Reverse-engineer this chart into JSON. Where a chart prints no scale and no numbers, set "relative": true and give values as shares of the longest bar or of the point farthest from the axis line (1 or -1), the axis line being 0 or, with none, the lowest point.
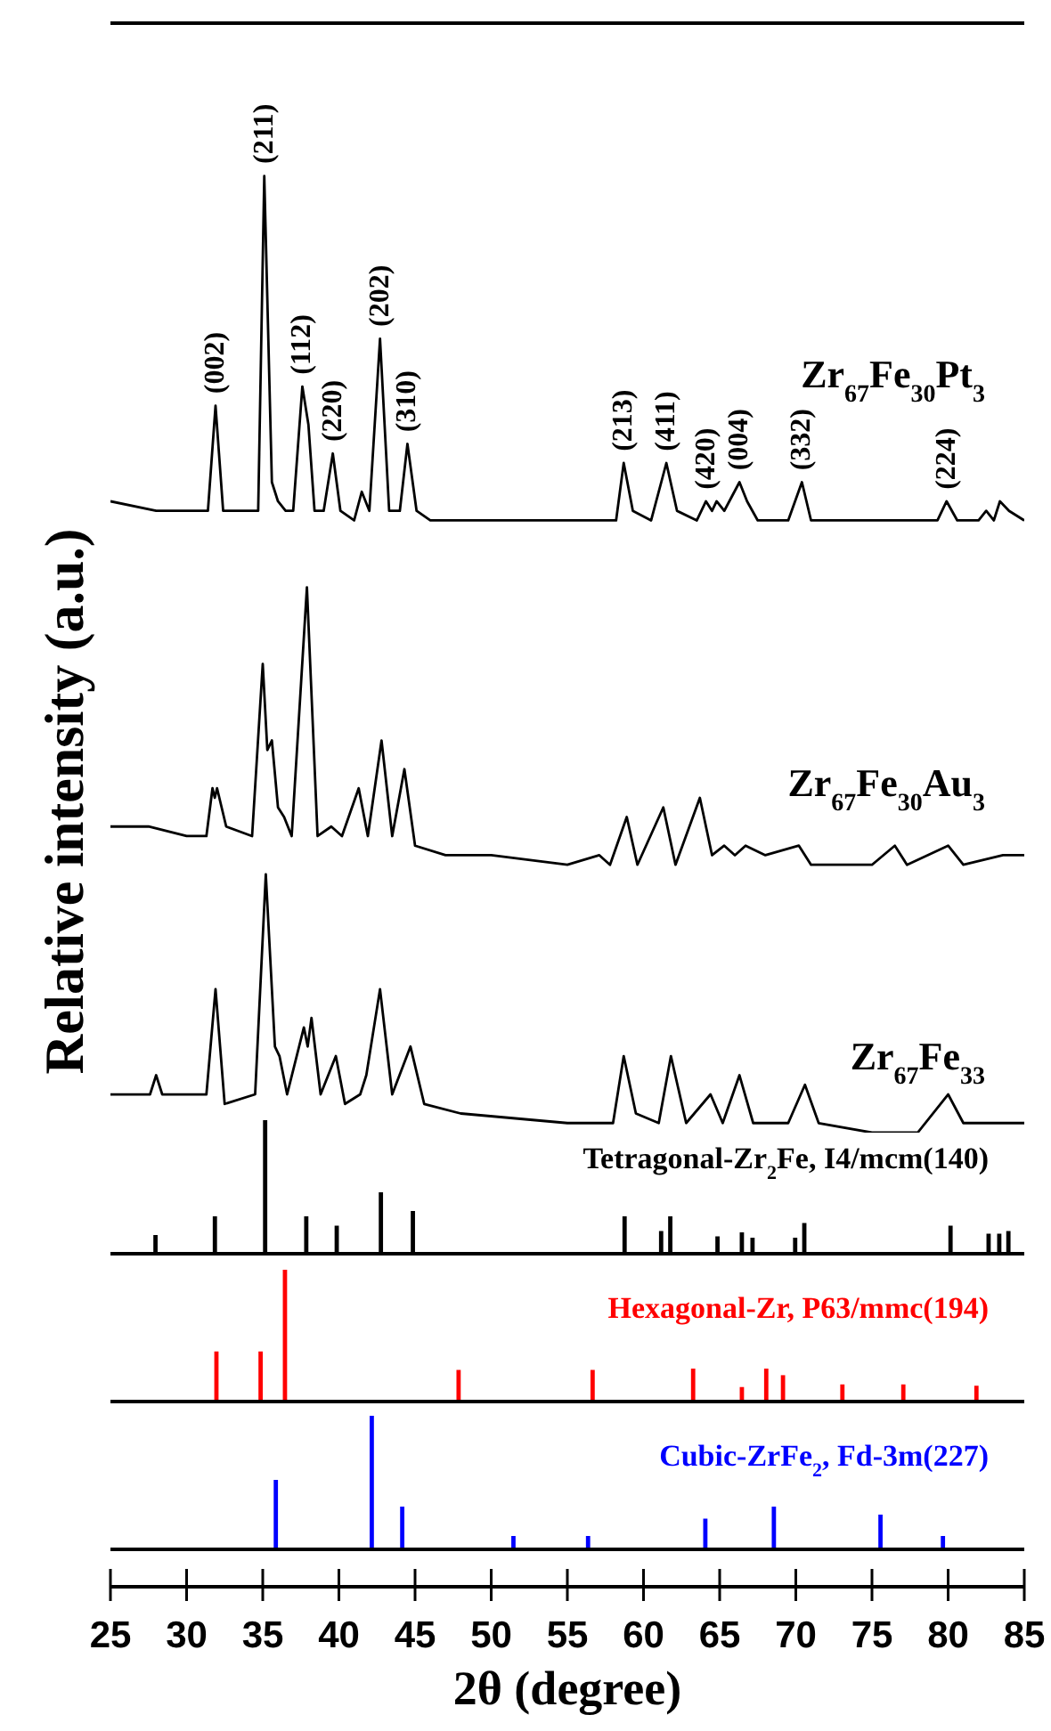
{
  "chart_data": [
    {
      "type": "line",
      "ylabel": "Relative intensity (a.u.)",
      "xlim": [
        25,
        85
      ],
      "tick_labels": false,
      "relative": true,
      "series": [
        {
          "name": "Zr$_{67}$Fe$_{30}$Pt$_{3}$",
          "color": "#000000",
          "x": [
            25,
            28,
            30,
            31.4,
            31.9,
            32.4,
            34.2,
            34.7,
            35.1,
            35.6,
            36.0,
            36.5,
            37.0,
            37.6,
            38.0,
            38.4,
            39.0,
            39.6,
            40.1,
            41.0,
            41.5,
            42.0,
            42.7,
            43.3,
            44.0,
            44.5,
            45.1,
            46,
            50,
            55,
            57.5,
            58.2,
            58.7,
            59.3,
            60.5,
            61.5,
            62.2,
            63.5,
            64.1,
            64.5,
            64.8,
            65.3,
            66.3,
            66.8,
            67.5,
            69.5,
            70.4,
            71.0,
            73,
            75,
            77.5,
            79.3,
            79.9,
            80.6,
            82,
            82.5,
            83.0,
            83.4,
            84,
            85
          ],
          "values": [
            0.66,
            0.65,
            0.65,
            0.65,
            0.76,
            0.65,
            0.65,
            0.65,
            1.0,
            0.68,
            0.66,
            0.65,
            0.65,
            0.78,
            0.74,
            0.65,
            0.65,
            0.71,
            0.65,
            0.64,
            0.67,
            0.65,
            0.83,
            0.65,
            0.65,
            0.72,
            0.65,
            0.64,
            0.64,
            0.64,
            0.64,
            0.64,
            0.7,
            0.65,
            0.64,
            0.7,
            0.65,
            0.64,
            0.66,
            0.65,
            0.66,
            0.65,
            0.68,
            0.66,
            0.64,
            0.64,
            0.68,
            0.64,
            0.64,
            0.64,
            0.64,
            0.64,
            0.66,
            0.64,
            0.64,
            0.65,
            0.64,
            0.66,
            0.65,
            0.64
          ]
        },
        {
          "name": "Zr$_{67}$Fe$_{30}$Au$_{3}$",
          "color": "#000000",
          "x": [
            25,
            27.5,
            30,
            31.3,
            31.7,
            31.85,
            32.0,
            32.6,
            34.3,
            35.0,
            35.3,
            35.6,
            36.0,
            36.4,
            36.9,
            37.9,
            38.6,
            39.5,
            40.2,
            41.3,
            41.9,
            42.8,
            43.5,
            44.3,
            45.0,
            47,
            50,
            55,
            57.1,
            57.8,
            58.9,
            59.6,
            61.3,
            62.1,
            63.7,
            64.5,
            65.3,
            66.0,
            66.7,
            68,
            70.2,
            71.0,
            75,
            76.5,
            77.3,
            80.0,
            81,
            83.6,
            85
          ],
          "values": [
            0.32,
            0.32,
            0.31,
            0.31,
            0.36,
            0.35,
            0.36,
            0.32,
            0.31,
            0.49,
            0.4,
            0.41,
            0.34,
            0.33,
            0.31,
            0.57,
            0.31,
            0.32,
            0.31,
            0.36,
            0.31,
            0.41,
            0.31,
            0.38,
            0.3,
            0.29,
            0.29,
            0.28,
            0.29,
            0.28,
            0.33,
            0.28,
            0.34,
            0.28,
            0.35,
            0.29,
            0.3,
            0.29,
            0.3,
            0.29,
            0.3,
            0.28,
            0.28,
            0.3,
            0.28,
            0.3,
            0.28,
            0.29,
            0.29
          ]
        },
        {
          "name": "Zr$_{67}$Fe$_{33}$",
          "color": "#000000",
          "x": [
            25,
            27.6,
            28.0,
            28.4,
            31.3,
            31.9,
            32.5,
            34.5,
            35.2,
            35.8,
            36.1,
            36.6,
            37.7,
            37.95,
            38.2,
            38.8,
            39.8,
            40.4,
            41.4,
            41.8,
            42.7,
            43.5,
            44.7,
            45.6,
            48,
            55,
            58.0,
            58.7,
            59.5,
            61,
            61.8,
            62.8,
            64.4,
            65.2,
            66.3,
            67.2,
            69.5,
            70.6,
            71.5,
            75,
            78,
            80.0,
            81.0,
            85
          ],
          "values": [
            0.04,
            0.04,
            0.06,
            0.04,
            0.04,
            0.15,
            0.03,
            0.04,
            0.27,
            0.09,
            0.08,
            0.04,
            0.11,
            0.09,
            0.12,
            0.04,
            0.08,
            0.03,
            0.04,
            0.06,
            0.15,
            0.04,
            0.09,
            0.03,
            0.02,
            0.01,
            0.01,
            0.08,
            0.02,
            0.01,
            0.08,
            0.01,
            0.04,
            0.01,
            0.06,
            0.01,
            0.01,
            0.05,
            0.01,
            0.0,
            0.0,
            0.04,
            0.01,
            0.01
          ]
        }
      ],
      "annotations": [
        {
          "text": "(002)",
          "x": 31.9,
          "y": 0.76
        },
        {
          "text": "(211)",
          "x": 35.1,
          "y": 1.0
        },
        {
          "text": "(112)",
          "x": 37.6,
          "y": 0.78
        },
        {
          "text": "(220)",
          "x": 39.6,
          "y": 0.71
        },
        {
          "text": "(202)",
          "x": 42.7,
          "y": 0.83
        },
        {
          "text": "(310)",
          "x": 44.5,
          "y": 0.72
        },
        {
          "text": "(213)",
          "x": 58.7,
          "y": 0.7
        },
        {
          "text": "(411)",
          "x": 61.5,
          "y": 0.7
        },
        {
          "text": "(420)",
          "x": 64.1,
          "y": 0.66
        },
        {
          "text": "(004)",
          "x": 66.3,
          "y": 0.68
        },
        {
          "text": "(332)",
          "x": 70.4,
          "y": 0.68
        },
        {
          "text": "(224)",
          "x": 79.9,
          "y": 0.66
        }
      ]
    },
    {
      "type": "bar",
      "xlim": [
        25,
        85
      ],
      "tick_labels": false,
      "relative": true,
      "series": [
        {
          "name": "Tetragonal-Zr$_{2}$Fe, I4/mcm(140)",
          "color": "#000000",
          "x": [
            28.0,
            31.9,
            35.2,
            37.9,
            39.9,
            42.8,
            44.9,
            58.8,
            61.2,
            61.8,
            64.9,
            66.5,
            67.2,
            70.0,
            70.6,
            80.2,
            82.7,
            83.4,
            84.0
          ],
          "values": [
            0.14,
            0.28,
            1.0,
            0.28,
            0.21,
            0.46,
            0.32,
            0.28,
            0.17,
            0.28,
            0.13,
            0.16,
            0.12,
            0.12,
            0.23,
            0.21,
            0.15,
            0.15,
            0.17
          ]
        }
      ]
    },
    {
      "type": "bar",
      "xlim": [
        25,
        85
      ],
      "tick_labels": false,
      "relative": true,
      "series": [
        {
          "name": "Hexagonal-Zr, P63/mmc(194)",
          "color": "#ff0000",
          "x": [
            31.9,
            34.8,
            36.4,
            47.8,
            56.6,
            63.2,
            66.4,
            68.0,
            69.1,
            73.0,
            77.0,
            81.8
          ],
          "values": [
            0.38,
            0.38,
            1.0,
            0.24,
            0.24,
            0.25,
            0.11,
            0.25,
            0.2,
            0.13,
            0.13,
            0.12
          ]
        }
      ]
    },
    {
      "type": "bar",
      "xlim": [
        25,
        85
      ],
      "xlabel": "2θ (degree)",
      "tick_labels": "x",
      "relative": true,
      "xticks": [
        25,
        30,
        35,
        40,
        45,
        50,
        55,
        60,
        65,
        70,
        75,
        80,
        85
      ],
      "series": [
        {
          "name": "Cubic-ZrFe$_{2}$, Fd-3m(227)",
          "color": "#0000ff",
          "x": [
            35.9,
            42.2,
            44.2,
            51.5,
            56.4,
            64.1,
            68.6,
            75.6,
            79.7
          ],
          "values": [
            0.52,
            1.0,
            0.32,
            0.1,
            0.1,
            0.23,
            0.32,
            0.26,
            0.1
          ]
        }
      ]
    }
  ]
}
